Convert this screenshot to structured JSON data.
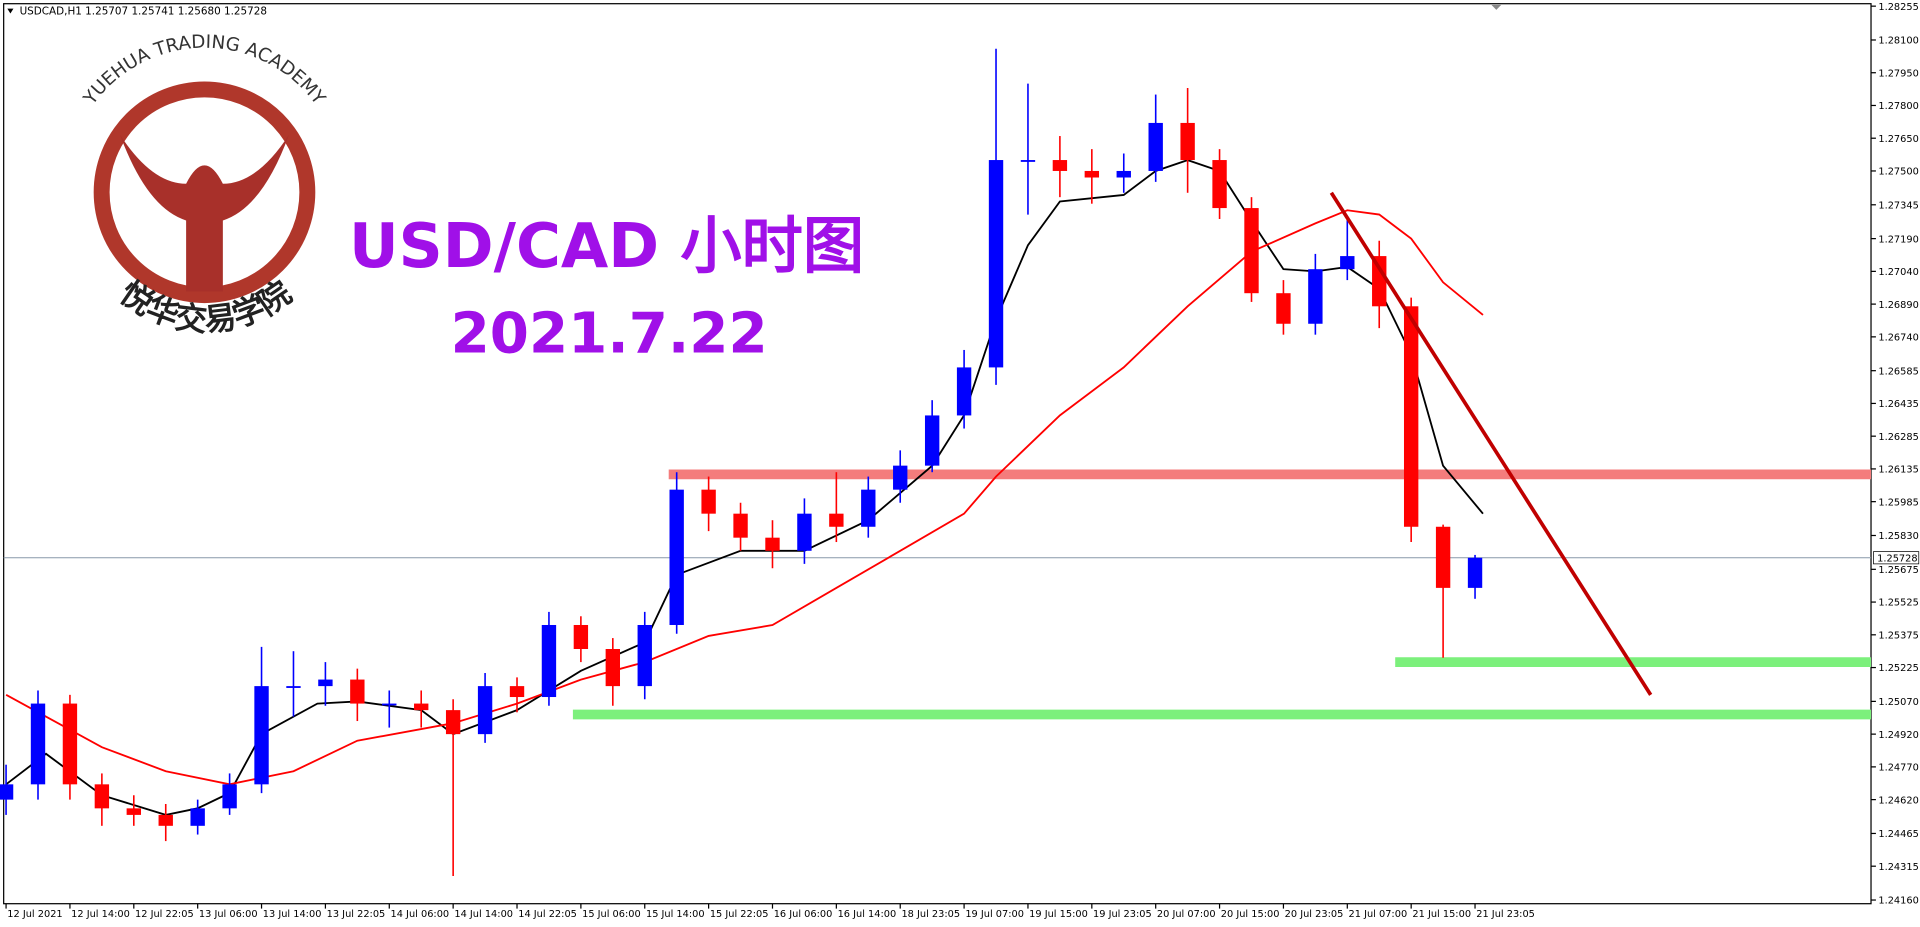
{
  "chart_data": {
    "type": "candlestick",
    "header": "USDCAD,H1  1.25707 1.25741 1.25680 1.25728",
    "title": "USD/CAD 小时图",
    "subtitle": "2021.7.22",
    "logo_text": "YUEHUA TRADING ACADEMY",
    "logo_name": "悦华交易学院",
    "up_color": "#0000ff",
    "down_color": "#ff0000",
    "x": [
      0,
      4,
      8,
      12,
      16,
      20,
      24,
      28,
      32,
      36,
      40,
      44,
      48,
      52,
      56,
      60,
      64,
      68,
      72,
      76,
      80,
      84,
      88,
      92,
      96,
      100,
      104,
      108,
      112,
      116,
      120,
      124,
      128,
      132,
      136,
      140,
      144,
      148,
      152,
      156,
      160,
      164,
      168,
      172,
      176,
      180,
      184
    ],
    "open": [
      1.2462,
      1.2469,
      1.2506,
      1.2469,
      1.2458,
      1.2455,
      1.245,
      1.2458,
      1.2469,
      1.2514,
      1.2514,
      1.2517,
      1.2506,
      1.2506,
      1.2503,
      1.2492,
      1.2514,
      1.2509,
      1.2542,
      1.2531,
      1.2514,
      1.2542,
      1.2604,
      1.2593,
      1.2582,
      1.2576,
      1.2593,
      1.2587,
      1.2604,
      1.2615,
      1.2638,
      1.266,
      1.2755,
      1.2755,
      1.275,
      1.2747,
      1.275,
      1.2772,
      1.2755,
      1.2733,
      1.2694,
      1.268,
      1.2705,
      1.2711,
      1.2688,
      1.2587,
      1.2559
    ],
    "high": [
      1.2478,
      1.2512,
      1.251,
      1.2474,
      1.2464,
      1.246,
      1.2462,
      1.2474,
      1.2532,
      1.253,
      1.2525,
      1.2522,
      1.2512,
      1.2512,
      1.2508,
      1.252,
      1.2518,
      1.2548,
      1.2546,
      1.2536,
      1.2548,
      1.2612,
      1.261,
      1.2598,
      1.259,
      1.26,
      1.2612,
      1.261,
      1.2622,
      1.2645,
      1.2668,
      1.2806,
      1.279,
      1.2766,
      1.276,
      1.2758,
      1.2785,
      1.2788,
      1.276,
      1.2738,
      1.27,
      1.2712,
      1.2728,
      1.2718,
      1.2692,
      1.2588,
      1.25741
    ],
    "low": [
      1.2455,
      1.2462,
      1.2462,
      1.245,
      1.245,
      1.2443,
      1.2446,
      1.2455,
      1.2465,
      1.25,
      1.2505,
      1.2498,
      1.2495,
      1.2495,
      1.2427,
      1.2488,
      1.2502,
      1.2505,
      1.2525,
      1.2505,
      1.2508,
      1.2538,
      1.2585,
      1.2576,
      1.2568,
      1.257,
      1.258,
      1.2582,
      1.2598,
      1.2612,
      1.2632,
      1.2652,
      1.273,
      1.2738,
      1.2735,
      1.274,
      1.2745,
      1.274,
      1.2728,
      1.269,
      1.2675,
      1.2675,
      1.27,
      1.2678,
      1.258,
      1.2527,
      1.2554
    ],
    "close": [
      1.2469,
      1.2506,
      1.2469,
      1.2458,
      1.2455,
      1.245,
      1.2458,
      1.2469,
      1.2514,
      1.2514,
      1.2517,
      1.2506,
      1.2506,
      1.2503,
      1.2492,
      1.2514,
      1.2509,
      1.2542,
      1.2531,
      1.2514,
      1.2542,
      1.2604,
      1.2593,
      1.2582,
      1.2576,
      1.2593,
      1.2587,
      1.2604,
      1.2615,
      1.2638,
      1.266,
      1.2755,
      1.2755,
      1.275,
      1.2747,
      1.275,
      1.2772,
      1.2755,
      1.2733,
      1.2694,
      1.268,
      1.2705,
      1.2711,
      1.2688,
      1.2587,
      1.2559,
      1.25728
    ],
    "overlays": [
      {
        "color": "#000000",
        "x": [
          0,
          5,
          12,
          20,
          24,
          28,
          32,
          39,
          44,
          52,
          56,
          64,
          72,
          80,
          84,
          92,
          100,
          108,
          116,
          120,
          124,
          128,
          132,
          140,
          144,
          148,
          152,
          156,
          160,
          164,
          168,
          172,
          176,
          180,
          185
        ],
        "values": [
          1.2469,
          1.2483,
          1.2464,
          1.2455,
          1.2458,
          1.2465,
          1.2492,
          1.2506,
          1.2507,
          1.2503,
          1.2492,
          1.2503,
          1.2521,
          1.2534,
          1.2565,
          1.2576,
          1.2576,
          1.259,
          1.2615,
          1.2638,
          1.2682,
          1.2716,
          1.2736,
          1.2739,
          1.275,
          1.2755,
          1.275,
          1.2727,
          1.2705,
          1.2704,
          1.2706,
          1.2696,
          1.2666,
          1.2615,
          1.2593
        ]
      },
      {
        "color": "#ff0000",
        "x": [
          0,
          12,
          20,
          28,
          36,
          44,
          56,
          64,
          72,
          80,
          88,
          96,
          104,
          112,
          120,
          124,
          132,
          140,
          148,
          156,
          164,
          168,
          172,
          176,
          180,
          185
        ],
        "values": [
          1.251,
          1.2486,
          1.2475,
          1.2469,
          1.2475,
          1.2489,
          1.2497,
          1.2506,
          1.2517,
          1.2525,
          1.2537,
          1.2542,
          1.2559,
          1.2576,
          1.2593,
          1.261,
          1.2638,
          1.266,
          1.2688,
          1.2713,
          1.2726,
          1.2732,
          1.273,
          1.2719,
          1.2699,
          1.2684
        ]
      }
    ],
    "levels": [
      {
        "value": 1.2611,
        "from": 83,
        "color": "#f47c7c"
      },
      {
        "value": 1.2525,
        "from": 174,
        "color": "#7cf07c"
      },
      {
        "value": 1.2501,
        "from": 71,
        "color": "#7cf07c"
      }
    ],
    "trendline": {
      "x": [
        166,
        206
      ],
      "values": [
        1.274,
        1.251
      ],
      "color": "#c00000"
    },
    "last_price": 1.25728,
    "xlim": [
      -0.3,
      233.6
    ],
    "ylim": [
      1.2416,
      1.28255
    ],
    "xticks": [
      {
        "value": 0,
        "label": "12 Jul 2021"
      },
      {
        "value": 8,
        "label": "12 Jul 14:00"
      },
      {
        "value": 16,
        "label": "12 Jul 22:05"
      },
      {
        "value": 24,
        "label": "13 Jul 06:00"
      },
      {
        "value": 32,
        "label": "13 Jul 14:00"
      },
      {
        "value": 40,
        "label": "13 Jul 22:05"
      },
      {
        "value": 48,
        "label": "14 Jul 06:00"
      },
      {
        "value": 56,
        "label": "14 Jul 14:00"
      },
      {
        "value": 64,
        "label": "14 Jul 22:05"
      },
      {
        "value": 72,
        "label": "15 Jul 06:00"
      },
      {
        "value": 80,
        "label": "15 Jul 14:00"
      },
      {
        "value": 88,
        "label": "15 Jul 22:05"
      },
      {
        "value": 96,
        "label": "16 Jul 06:00"
      },
      {
        "value": 104,
        "label": "16 Jul 14:00"
      },
      {
        "value": 112,
        "label": "18 Jul 23:05"
      },
      {
        "value": 120,
        "label": "19 Jul 07:00"
      },
      {
        "value": 128,
        "label": "19 Jul 15:00"
      },
      {
        "value": 136,
        "label": "19 Jul 23:05"
      },
      {
        "value": 144,
        "label": "20 Jul 07:00"
      },
      {
        "value": 152,
        "label": "20 Jul 15:00"
      },
      {
        "value": 160,
        "label": "20 Jul 23:05"
      },
      {
        "value": 168,
        "label": "21 Jul 07:00"
      },
      {
        "value": 176,
        "label": "21 Jul 15:00"
      },
      {
        "value": 184,
        "label": "21 Jul 23:05"
      }
    ],
    "yticks": [
      1.28255,
      {
        "value": 1.281,
        "label": "1.28100"
      },
      {
        "value": 1.2795,
        "label": "1.27950"
      },
      {
        "value": 1.278,
        "label": "1.27800"
      },
      {
        "value": 1.2765,
        "label": "1.27650"
      },
      {
        "value": 1.275,
        "label": "1.27500"
      },
      1.27345,
      {
        "value": 1.2719,
        "label": "1.27190"
      },
      {
        "value": 1.2704,
        "label": "1.27040"
      },
      {
        "value": 1.2689,
        "label": "1.26890"
      },
      {
        "value": 1.2674,
        "label": "1.26740"
      },
      1.26585,
      1.26435,
      1.26285,
      1.26135,
      1.25985,
      {
        "value": 1.2583,
        "label": "1.25830"
      },
      1.25675,
      1.25525,
      1.25375,
      1.25225,
      {
        "value": 1.2507,
        "label": "1.25070"
      },
      {
        "value": 1.2492,
        "label": "1.24920"
      },
      {
        "value": 1.2477,
        "label": "1.24770"
      },
      {
        "value": 1.2462,
        "label": "1.24620"
      },
      1.24465,
      1.24315,
      {
        "value": 1.2416,
        "label": "1.24160"
      }
    ]
  }
}
